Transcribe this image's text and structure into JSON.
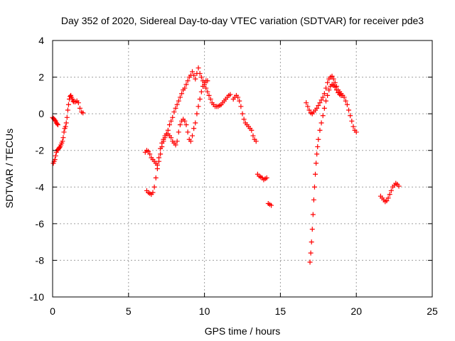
{
  "chart_data": {
    "type": "scatter",
    "title": "Day 352 of 2020, Sidereal Day-to-day VTEC variation (SDTVAR) for receiver pde3",
    "xlabel": "GPS time / hours",
    "ylabel": "SDTVAR / TECUs",
    "xlim": [
      0,
      25
    ],
    "ylim": [
      -10,
      4
    ],
    "xticks": [
      0,
      5,
      10,
      15,
      20,
      25
    ],
    "yticks": [
      -10,
      -8,
      -6,
      -4,
      -2,
      0,
      2,
      4
    ],
    "xtick_labels": [
      "0",
      "5",
      "10",
      "15",
      "20",
      "25"
    ],
    "ytick_labels": [
      "-10",
      "-8",
      "-6",
      "-4",
      "-2",
      "0",
      "2",
      "4"
    ],
    "grid": true,
    "marker": "plus",
    "color": "#ff0000",
    "series": [
      {
        "name": "segment-1",
        "x": [
          0.0,
          0.05,
          0.1,
          0.15,
          0.2,
          0.25,
          0.3,
          0.35,
          0.05,
          0.1,
          0.15,
          0.2,
          0.25,
          0.3,
          0.35,
          0.4,
          0.45,
          0.5,
          0.55,
          0.6,
          0.65,
          0.7,
          0.75,
          0.8,
          0.85,
          0.9,
          0.95,
          1.0,
          1.05,
          1.1,
          1.15,
          1.2,
          1.25,
          1.3,
          1.35,
          1.4,
          1.5,
          1.6,
          1.7,
          1.8,
          1.9,
          2.0
        ],
        "y": [
          -0.2,
          -0.25,
          -0.3,
          -0.35,
          -0.4,
          -0.5,
          -0.55,
          -0.6,
          -2.7,
          -2.6,
          -2.5,
          -2.3,
          -2.1,
          -2.0,
          -1.95,
          -1.9,
          -1.85,
          -1.8,
          -1.7,
          -1.6,
          -1.5,
          -1.3,
          -1.0,
          -0.8,
          -0.7,
          -0.5,
          -0.2,
          0.2,
          0.5,
          0.8,
          0.95,
          1.0,
          0.9,
          0.8,
          0.7,
          0.65,
          0.65,
          0.7,
          0.6,
          0.3,
          0.1,
          0.05
        ]
      },
      {
        "name": "segment-2",
        "x": [
          6.1,
          6.2,
          6.3,
          6.4,
          6.5,
          6.6,
          6.7,
          6.8,
          6.9,
          7.0,
          7.1,
          7.2,
          7.3,
          7.4,
          7.5,
          7.6,
          7.7,
          7.8,
          7.9,
          8.0,
          8.1,
          8.2,
          8.3,
          8.4,
          8.5,
          8.6,
          8.7,
          8.8,
          8.9,
          9.0,
          9.1,
          9.2,
          9.3,
          9.4,
          9.5,
          9.6,
          9.7,
          9.8,
          9.9,
          10.0,
          10.1,
          10.2,
          10.3,
          10.4,
          10.5,
          10.6,
          10.7,
          10.8,
          10.9,
          11.0,
          11.1,
          11.2,
          11.3,
          11.4,
          11.5,
          11.6,
          11.7
        ],
        "y": [
          -2.1,
          -2.0,
          -2.05,
          -2.2,
          -2.4,
          -2.5,
          -2.6,
          -2.7,
          -2.8,
          -2.6,
          -2.2,
          -1.8,
          -1.5,
          -1.3,
          -1.1,
          -0.9,
          -0.6,
          -0.4,
          -0.2,
          0.1,
          0.3,
          0.5,
          0.7,
          0.9,
          1.1,
          1.3,
          1.4,
          1.6,
          1.8,
          2.0,
          2.1,
          2.3,
          2.1,
          1.9,
          2.2,
          2.5,
          2.2,
          2.0,
          1.8,
          1.6,
          1.4,
          1.2,
          1.0,
          0.8,
          0.6,
          0.5,
          0.4,
          0.4,
          0.4,
          0.45,
          0.5,
          0.6,
          0.7,
          0.8,
          0.9,
          1.0,
          1.05
        ]
      },
      {
        "name": "segment-3",
        "x": [
          6.2,
          6.3,
          6.4,
          6.5,
          6.6,
          6.7,
          6.8,
          6.9,
          7.0,
          7.1,
          7.2,
          7.3,
          7.4,
          7.5,
          7.6,
          7.7,
          7.8,
          7.9,
          8.0,
          8.1,
          8.2,
          8.3,
          8.4,
          8.5,
          8.6,
          8.7,
          8.8,
          8.9,
          9.0,
          9.1,
          9.2,
          9.3,
          9.4,
          9.5,
          9.6,
          9.7,
          9.8,
          9.9,
          10.0,
          10.1,
          10.2
        ],
        "y": [
          -4.2,
          -4.3,
          -4.35,
          -4.4,
          -4.3,
          -4.0,
          -3.5,
          -3.0,
          -2.4,
          -1.9,
          -1.6,
          -1.4,
          -1.2,
          -1.1,
          -1.1,
          -1.2,
          -1.3,
          -1.5,
          -1.6,
          -1.7,
          -1.5,
          -1.0,
          -0.6,
          -0.4,
          -0.3,
          -0.4,
          -0.6,
          -1.0,
          -1.4,
          -1.5,
          -1.2,
          -0.8,
          -0.5,
          0.0,
          0.4,
          0.8,
          1.2,
          1.5,
          1.7,
          1.8,
          1.8
        ]
      },
      {
        "name": "segment-4",
        "x": [
          11.9,
          12.0,
          12.1,
          12.2,
          12.3,
          12.4,
          12.5,
          12.6,
          12.7,
          12.8,
          12.9,
          13.0,
          13.1,
          13.2,
          13.3,
          13.4,
          13.5,
          13.6,
          13.7,
          13.8,
          13.9,
          14.0,
          14.1,
          14.2,
          14.3,
          14.4
        ],
        "y": [
          0.8,
          0.9,
          1.0,
          0.9,
          0.7,
          0.4,
          0.0,
          -0.3,
          -0.5,
          -0.6,
          -0.7,
          -0.8,
          -0.9,
          -1.2,
          -1.4,
          -1.5,
          -3.3,
          -3.4,
          -3.45,
          -3.5,
          -3.6,
          -3.55,
          -3.5,
          -4.9,
          -4.95,
          -5.0
        ]
      },
      {
        "name": "segment-5",
        "x": [
          16.7,
          16.8,
          16.9,
          17.0,
          17.1,
          17.2,
          17.3,
          17.4,
          17.5,
          17.6,
          17.7,
          17.8,
          17.9,
          18.0,
          18.1,
          18.2,
          18.3,
          18.4,
          18.5,
          18.6,
          18.7,
          18.8,
          18.9,
          19.0,
          19.1,
          19.2,
          19.3,
          19.4,
          19.5,
          19.6,
          19.7,
          19.8,
          19.9,
          20.0
        ],
        "y": [
          0.6,
          0.4,
          0.2,
          0.05,
          0.0,
          0.1,
          0.2,
          0.3,
          0.45,
          0.6,
          0.75,
          0.9,
          1.1,
          1.4,
          1.7,
          1.9,
          2.0,
          2.05,
          1.9,
          1.7,
          1.5,
          1.3,
          1.2,
          1.1,
          1.0,
          0.9,
          0.7,
          0.5,
          0.2,
          -0.1,
          -0.4,
          -0.7,
          -0.9,
          -1.0
        ]
      },
      {
        "name": "segment-6",
        "x": [
          16.95,
          17.0,
          17.05,
          17.1,
          17.15,
          17.2,
          17.25,
          17.3,
          17.35,
          17.4,
          17.45,
          17.5,
          17.6,
          17.7,
          17.8,
          17.9,
          18.0,
          18.1,
          18.2,
          18.3,
          18.4,
          18.5,
          18.6,
          18.7,
          18.8,
          18.9,
          19.0
        ],
        "y": [
          -8.1,
          -7.6,
          -7.0,
          -6.3,
          -5.5,
          -4.7,
          -4.0,
          -3.3,
          -2.7,
          -2.2,
          -1.8,
          -1.4,
          -0.9,
          -0.5,
          -0.1,
          0.3,
          0.7,
          1.0,
          1.3,
          1.5,
          1.6,
          1.55,
          1.45,
          1.3,
          1.15,
          1.05,
          1.0
        ]
      },
      {
        "name": "segment-7",
        "x": [
          21.6,
          21.7,
          21.8,
          21.9,
          22.0,
          22.1,
          22.2,
          22.3,
          22.4,
          22.5,
          22.6,
          22.7,
          22.8
        ],
        "y": [
          -4.5,
          -4.6,
          -4.7,
          -4.8,
          -4.75,
          -4.6,
          -4.4,
          -4.2,
          -4.0,
          -3.9,
          -3.8,
          -3.85,
          -3.95
        ]
      }
    ]
  }
}
